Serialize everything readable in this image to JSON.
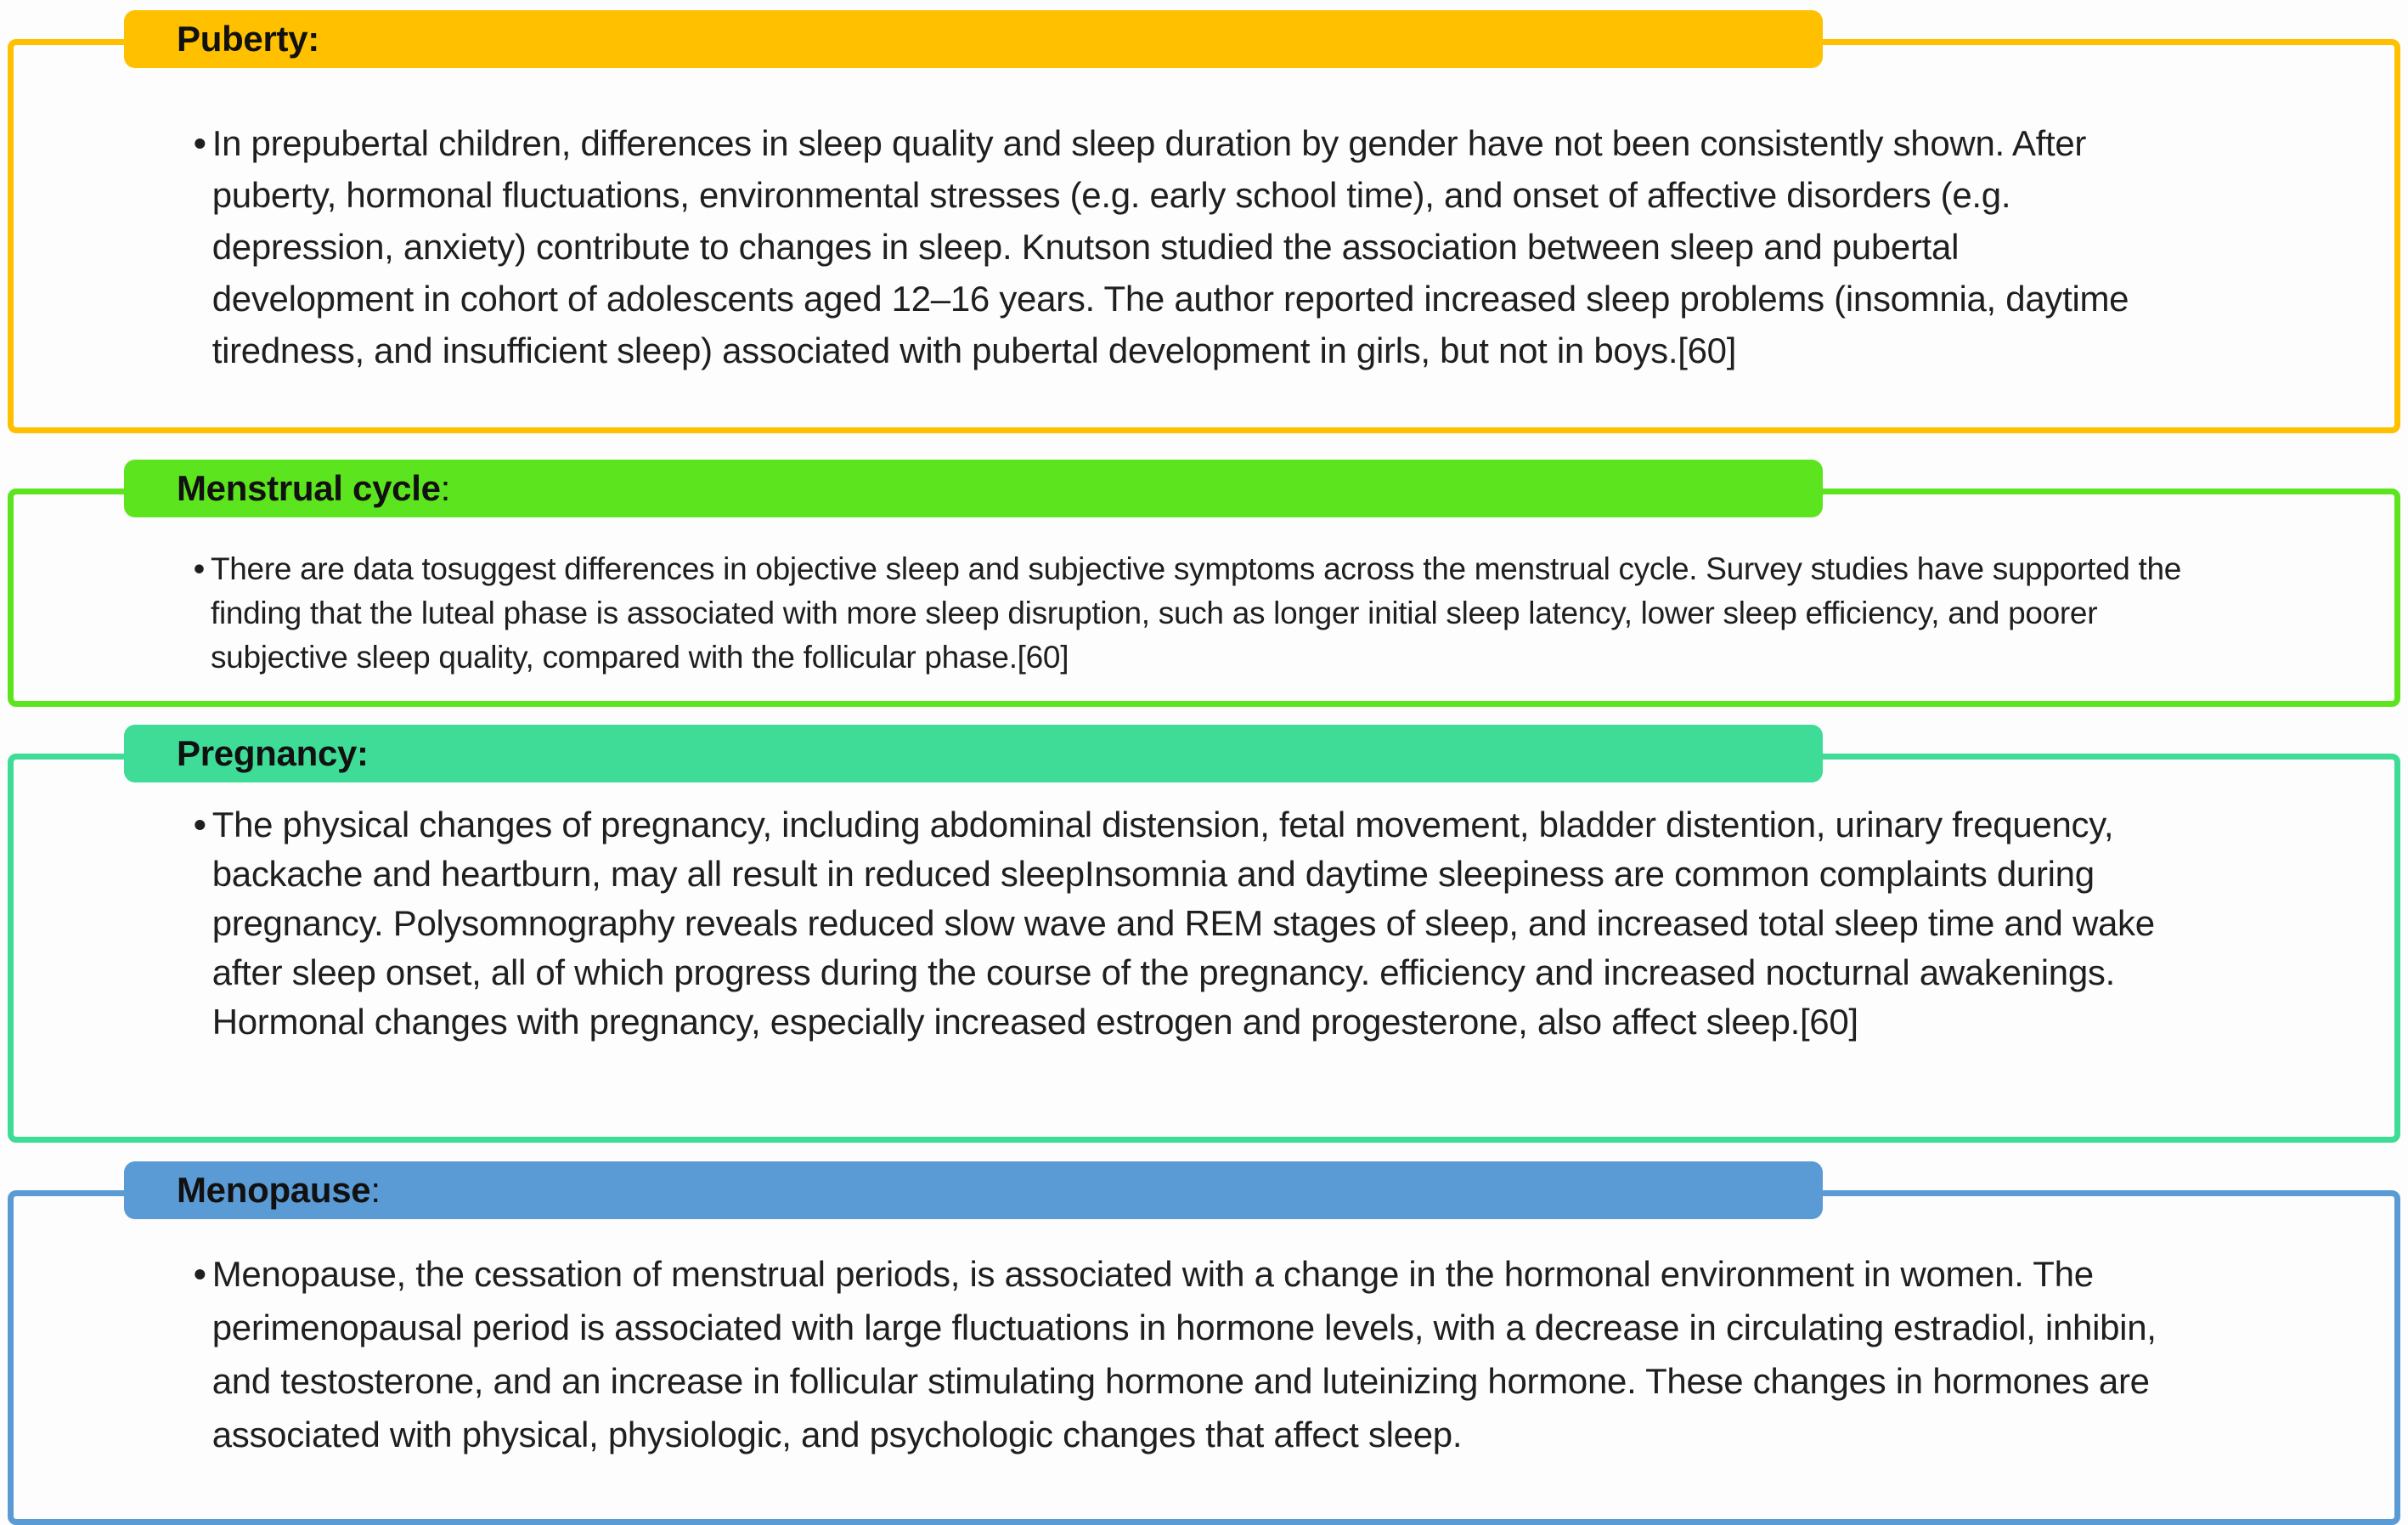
{
  "page": {
    "background_color": "#fdfdfd",
    "text_color": "#1f1f1f"
  },
  "sections": [
    {
      "id": "puberty",
      "title": "Puberty:",
      "colon": "",
      "accent": "#FFC000",
      "bullet": "•",
      "text": "In prepubertal children, differences in sleep quality and sleep duration by gender have not been consistently shown. After puberty, hormonal fluctuations, environmental stresses (e.g. early school time), and onset of affective disorders (e.g. depression, anxiety) contribute to changes in sleep. Knutson studied the association between sleep and pubertal development in cohort of adolescents aged 12–16 years. The author reported increased sleep problems (insomnia, daytime tiredness, and insufficient sleep) associated with pubertal development in girls, but not in boys.[60]"
    },
    {
      "id": "menstrual-cycle",
      "title": "Menstrual cycle",
      "colon": ":",
      "accent": "#5CE41E",
      "bullet": "•",
      "text": "There are data tosuggest differences in objective sleep and subjective symptoms across the menstrual cycle. Survey studies have supported the finding that the luteal phase is associated with more sleep disruption, such as longer initial sleep latency, lower sleep efficiency, and poorer subjective sleep quality, compared with the follicular phase.[60]"
    },
    {
      "id": "pregnancy",
      "title": "Pregnancy:",
      "colon": "",
      "accent": "#3EDC97",
      "bullet": "•",
      "text": "The physical changes of pregnancy, including abdominal distension, fetal movement, bladder distention, urinary frequency, backache and heartburn, may all result in reduced sleepInsomnia and daytime sleepiness are common complaints during pregnancy. Polysomnography reveals reduced slow wave and REM stages of sleep, and increased total sleep time and wake after sleep onset, all of which progress during the course of the pregnancy. efficiency and increased nocturnal awakenings. Hormonal changes with pregnancy, especially increased estrogen and progesterone, also affect sleep.[60]"
    },
    {
      "id": "menopause",
      "title": "Menopause",
      "colon": ":",
      "accent": "#5B9BD5",
      "bullet": "•",
      "text": "Menopause, the cessation of menstrual periods, is associated with a change in the hormonal environment in women. The perimenopausal period is associated with large fluctuations in hormone levels, with a decrease in circulating estradiol, inhibin, and testosterone, and an increase in follicular stimulating hormone and luteinizing hormone. These changes in hormones are associated with physical, physiologic, and psychologic changes that affect sleep."
    }
  ]
}
